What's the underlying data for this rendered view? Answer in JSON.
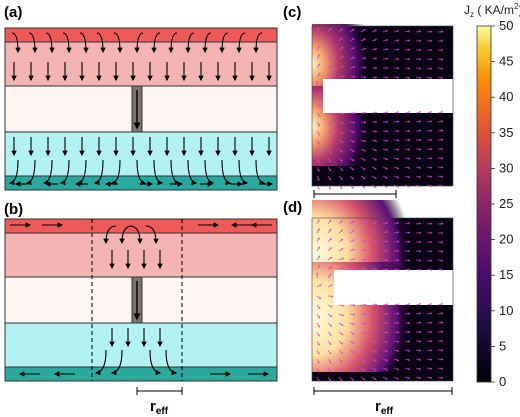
{
  "panels": {
    "a": "(a)",
    "b": "(b)",
    "c": "(c)",
    "d": "(d)"
  },
  "reff": {
    "main": "r",
    "sub": "eff"
  },
  "colorbar": {
    "title": "J",
    "title_sub": "z",
    "title_units": " ( KA/m",
    "title_sup": "2",
    "title_close": ")",
    "ticks": [
      "50",
      "45",
      "40",
      "35",
      "30",
      "25",
      "20",
      "15",
      "10",
      "5",
      "0"
    ],
    "range": [
      0,
      50
    ]
  },
  "colors": {
    "top_electrode": "#ee5a5a",
    "top_layer": "#f5b4b4",
    "barrier": "#fdf6f2",
    "bottom_layer": "#b2f2f2",
    "bottom_electrode": "#2aa89e",
    "pinhole": "#7a7472",
    "arrow_pink": "#e040d0"
  }
}
